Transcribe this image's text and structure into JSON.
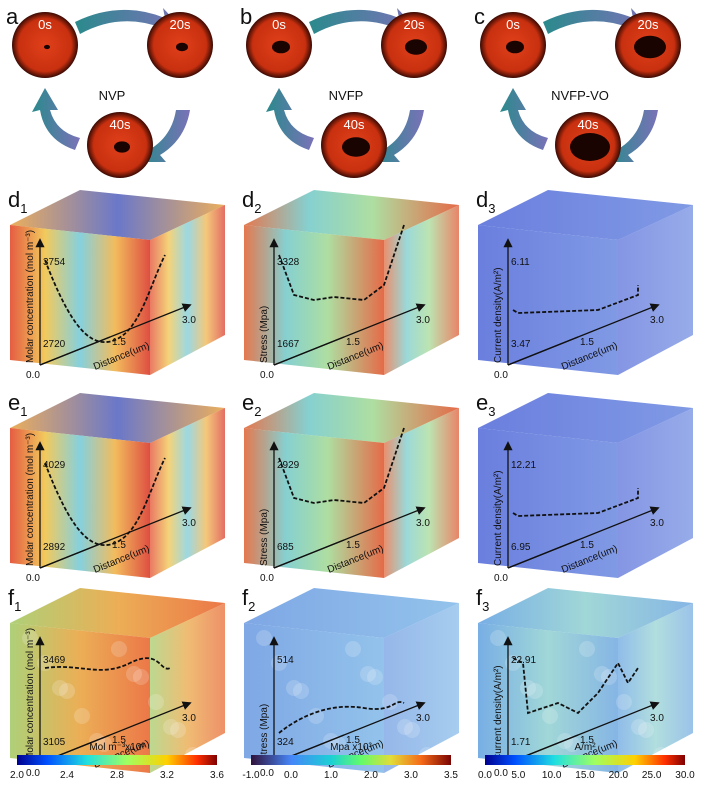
{
  "row_a": [
    {
      "label": "a",
      "material": "NVP",
      "times": [
        "0s",
        "20s",
        "40s"
      ]
    },
    {
      "label": "b",
      "material": "NVFP",
      "times": [
        "0s",
        "20s",
        "40s"
      ]
    },
    {
      "label": "c",
      "material": "NVFP-VO",
      "times": [
        "0s",
        "20s",
        "40s"
      ]
    }
  ],
  "panels": [
    [
      {
        "label": "d",
        "sub": "1",
        "y_label": "Molar concentration (mol m⁻³)",
        "x_label": "Distance(um)",
        "high": "3754",
        "low": "2720",
        "x_ticks": [
          "0.0",
          "1.5",
          "3.0"
        ]
      },
      {
        "label": "d",
        "sub": "2",
        "y_label": "Stress (Mpa)",
        "x_label": "Distance(um)",
        "high": "3328",
        "low": "1667",
        "x_ticks": [
          "0.0",
          "1.5",
          "3.0"
        ]
      },
      {
        "label": "d",
        "sub": "3",
        "y_label": "Current density(A/m²)",
        "x_label": "Distance(um)",
        "high": "6.11",
        "low": "3.47",
        "x_ticks": [
          "0.0",
          "1.5",
          "3.0"
        ]
      }
    ],
    [
      {
        "label": "e",
        "sub": "1",
        "y_label": "Molar concentration (mol m⁻³)",
        "x_label": "Distance(um)",
        "high": "4029",
        "low": "2892",
        "x_ticks": [
          "0.0",
          "1.5",
          "3.0"
        ]
      },
      {
        "label": "e",
        "sub": "2",
        "y_label": "Stress (Mpa)",
        "x_label": "Distance(um)",
        "high": "2929",
        "low": "685",
        "x_ticks": [
          "0.0",
          "1.5",
          "3.0"
        ]
      },
      {
        "label": "e",
        "sub": "3",
        "y_label": "Current density(A/m²)",
        "x_label": "Distance(um)",
        "high": "12.21",
        "low": "6.95",
        "x_ticks": [
          "0.0",
          "1.5",
          "3.0"
        ]
      }
    ],
    [
      {
        "label": "f",
        "sub": "1",
        "y_label": "Molar concentration (mol m⁻³)",
        "x_label": "Distance(um)",
        "high": "3469",
        "low": "3105",
        "x_ticks": [
          "0.0",
          "1.5",
          "3.0"
        ]
      },
      {
        "label": "f",
        "sub": "2",
        "y_label": "Stress (Mpa)",
        "x_label": "Distance(um)",
        "high": "514",
        "low": "324",
        "x_ticks": [
          "0.0",
          "1.5",
          "3.0"
        ]
      },
      {
        "label": "f",
        "sub": "3",
        "y_label": "Current density(A/m²)",
        "x_label": "Distance(um)",
        "high": "22.91",
        "low": "1.71",
        "x_ticks": [
          "0.0",
          "1.5",
          "3.0"
        ]
      }
    ]
  ],
  "colorbars": [
    {
      "title": "Mol m⁻³x10³",
      "ticks": [
        "2.0",
        "2.4",
        "2.8",
        "3.2",
        "3.6"
      ]
    },
    {
      "title": "Mpa x10³",
      "ticks": [
        "-1.0",
        "0.0",
        "1.0",
        "2.0",
        "3.0",
        "3.5"
      ]
    },
    {
      "title": "A/m²",
      "ticks": [
        "0.0",
        "5.0",
        "10.0",
        "15.0",
        "20.0",
        "25.0",
        "30.0"
      ]
    }
  ]
}
